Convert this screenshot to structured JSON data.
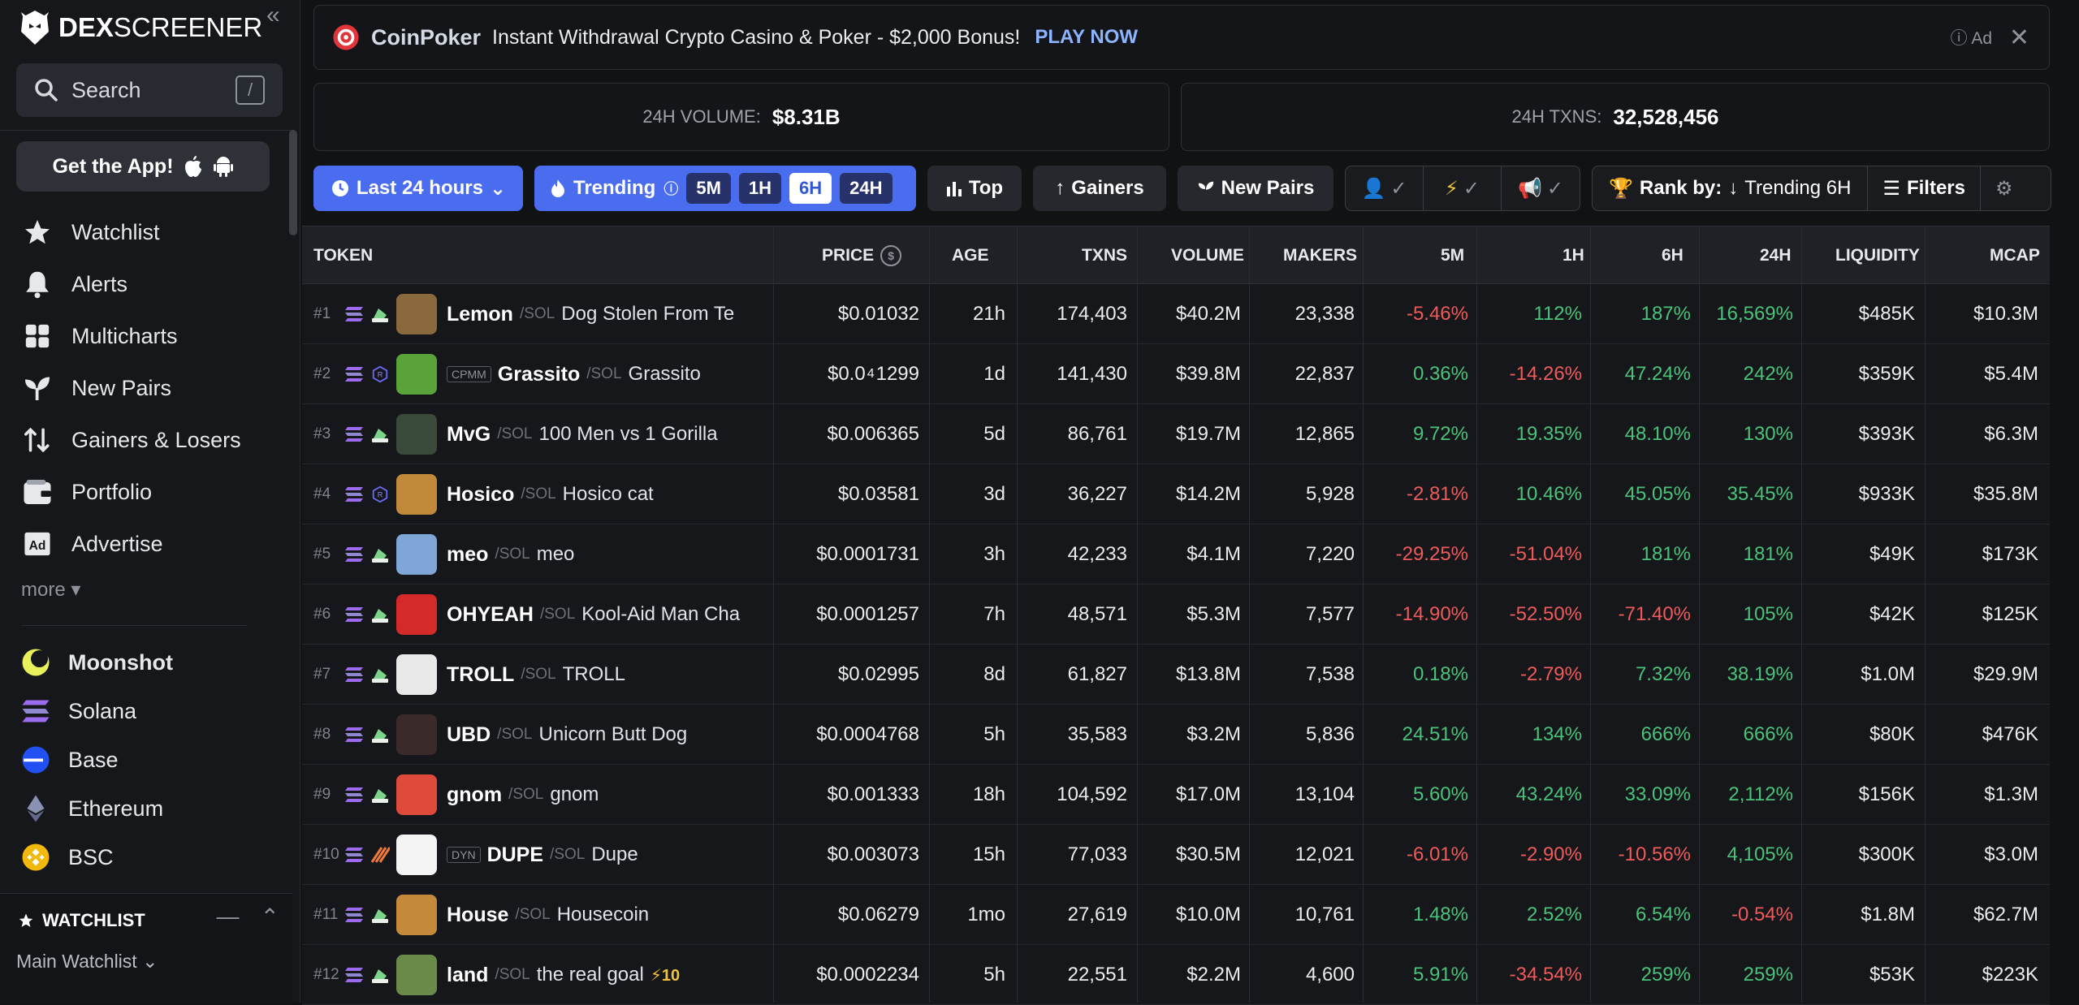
{
  "sidebar": {
    "logo_text_bold": "DEX",
    "logo_text": "SCREENER",
    "search_label": "Search",
    "search_shortcut": "/",
    "get_app": "Get the App!",
    "nav": [
      {
        "label": "Watchlist",
        "icon": "star-icon"
      },
      {
        "label": "Alerts",
        "icon": "bell-icon"
      },
      {
        "label": "Multicharts",
        "icon": "grid-icon"
      },
      {
        "label": "New Pairs",
        "icon": "sprout-icon"
      },
      {
        "label": "Gainers & Losers",
        "icon": "up-down-arrows-icon"
      },
      {
        "label": "Portfolio",
        "icon": "wallet-icon"
      },
      {
        "label": "Advertise",
        "icon": "ad-icon"
      }
    ],
    "more": "more",
    "chains": [
      {
        "label": "Moonshot",
        "color": "#e8f05a"
      },
      {
        "label": "Solana",
        "color": "#9b6cf0"
      },
      {
        "label": "Base",
        "color": "#2151f5"
      },
      {
        "label": "Ethereum",
        "color": "#8a92b2"
      },
      {
        "label": "BSC",
        "color": "#f0b90b"
      }
    ],
    "watchlist_title": "WATCHLIST",
    "watchlist_selected": "Main Watchlist"
  },
  "banner": {
    "brand": "CoinPoker",
    "text": "Instant Withdrawal Crypto Casino & Poker - $2,000 Bonus!",
    "cta": "PLAY NOW",
    "ad": "Ad"
  },
  "stats": {
    "volume_label": "24H VOLUME:",
    "volume_value": "$8.31B",
    "txns_label": "24H TXNS:",
    "txns_value": "32,528,456"
  },
  "toolbar": {
    "timeframe": "Last 24 hours",
    "trending": "Trending",
    "trending_options": [
      "5M",
      "1H",
      "6H",
      "24H"
    ],
    "trending_selected": "6H",
    "top": "Top",
    "gainers": "Gainers",
    "new_pairs": "New Pairs",
    "rank_by_label": "Rank by:",
    "rank_by_value": "Trending 6H",
    "filters": "Filters"
  },
  "table": {
    "headers": [
      "TOKEN",
      "PRICE",
      "AGE",
      "TXNS",
      "VOLUME",
      "MAKERS",
      "5M",
      "1H",
      "6H",
      "24H",
      "LIQUIDITY",
      "MCAP"
    ],
    "rows": [
      {
        "rank": "#1",
        "badge": "",
        "symbol": "Lemon",
        "quote": "SOL",
        "name": "Dog Stolen From Te",
        "price": "$0.01032",
        "age": "21h",
        "txns": "174,403",
        "volume": "$40.2M",
        "makers": "23,338",
        "m5": "-5.46%",
        "h1": "112%",
        "h6": "187%",
        "h24": "16,569%",
        "liquidity": "$485K",
        "mcap": "$10.3M",
        "avatar": "#8a6a3c"
      },
      {
        "rank": "#2",
        "badge": "CPMM",
        "symbol": "Grassito",
        "quote": "SOL",
        "name": "Grassito",
        "price_pre": "$0.0",
        "price_sub": "4",
        "price_post": "1299",
        "age": "1d",
        "txns": "141,430",
        "volume": "$39.8M",
        "makers": "22,837",
        "m5": "0.36%",
        "h1": "-14.26%",
        "h6": "47.24%",
        "h24": "242%",
        "liquidity": "$359K",
        "mcap": "$5.4M",
        "avatar": "#5aa23a"
      },
      {
        "rank": "#3",
        "badge": "",
        "symbol": "MvG",
        "quote": "SOL",
        "name": "100 Men vs 1 Gorilla",
        "price": "$0.006365",
        "age": "5d",
        "txns": "86,761",
        "volume": "$19.7M",
        "makers": "12,865",
        "m5": "9.72%",
        "h1": "19.35%",
        "h6": "48.10%",
        "h24": "130%",
        "liquidity": "$393K",
        "mcap": "$6.3M",
        "avatar": "#3a4a3a"
      },
      {
        "rank": "#4",
        "badge": "",
        "symbol": "Hosico",
        "quote": "SOL",
        "name": "Hosico cat",
        "price": "$0.03581",
        "age": "3d",
        "txns": "36,227",
        "volume": "$14.2M",
        "makers": "5,928",
        "m5": "-2.81%",
        "h1": "10.46%",
        "h6": "45.05%",
        "h24": "35.45%",
        "liquidity": "$933K",
        "mcap": "$35.8M",
        "avatar": "#c08a3a"
      },
      {
        "rank": "#5",
        "badge": "",
        "symbol": "meo",
        "quote": "SOL",
        "name": "meo",
        "price": "$0.0001731",
        "age": "3h",
        "txns": "42,233",
        "volume": "$4.1M",
        "makers": "7,220",
        "m5": "-29.25%",
        "h1": "-51.04%",
        "h6": "181%",
        "h24": "181%",
        "liquidity": "$49K",
        "mcap": "$173K",
        "avatar": "#7fa6d6"
      },
      {
        "rank": "#6",
        "badge": "",
        "symbol": "OHYEAH",
        "quote": "SOL",
        "name": "Kool-Aid Man Cha",
        "price": "$0.0001257",
        "age": "7h",
        "txns": "48,571",
        "volume": "$5.3M",
        "makers": "7,577",
        "m5": "-14.90%",
        "h1": "-52.50%",
        "h6": "-71.40%",
        "h24": "105%",
        "liquidity": "$42K",
        "mcap": "$125K",
        "avatar": "#d42a2a"
      },
      {
        "rank": "#7",
        "badge": "",
        "symbol": "TROLL",
        "quote": "SOL",
        "name": "TROLL",
        "price": "$0.02995",
        "age": "8d",
        "txns": "61,827",
        "volume": "$13.8M",
        "makers": "7,538",
        "m5": "0.18%",
        "h1": "-2.79%",
        "h6": "7.32%",
        "h24": "38.19%",
        "liquidity": "$1.0M",
        "mcap": "$29.9M",
        "avatar": "#e8e8e8"
      },
      {
        "rank": "#8",
        "badge": "",
        "symbol": "UBD",
        "quote": "SOL",
        "name": "Unicorn Butt Dog",
        "price": "$0.0004768",
        "age": "5h",
        "txns": "35,583",
        "volume": "$3.2M",
        "makers": "5,836",
        "m5": "24.51%",
        "h1": "134%",
        "h6": "666%",
        "h24": "666%",
        "liquidity": "$80K",
        "mcap": "$476K",
        "avatar": "#3a2a2a"
      },
      {
        "rank": "#9",
        "badge": "",
        "symbol": "gnom",
        "quote": "SOL",
        "name": "gnom",
        "price": "$0.001333",
        "age": "18h",
        "txns": "104,592",
        "volume": "$17.0M",
        "makers": "13,104",
        "m5": "5.60%",
        "h1": "43.24%",
        "h6": "33.09%",
        "h24": "2,112%",
        "liquidity": "$156K",
        "mcap": "$1.3M",
        "avatar": "#e04a3a"
      },
      {
        "rank": "#10",
        "badge": "DYN",
        "symbol": "DUPE",
        "quote": "SOL",
        "name": "Dupe",
        "price": "$0.003073",
        "age": "15h",
        "txns": "77,033",
        "volume": "$30.5M",
        "makers": "12,021",
        "m5": "-6.01%",
        "h1": "-2.90%",
        "h6": "-10.56%",
        "h24": "4,105%",
        "liquidity": "$300K",
        "mcap": "$3.0M",
        "avatar": "#f4f4f4"
      },
      {
        "rank": "#11",
        "badge": "",
        "symbol": "House",
        "quote": "SOL",
        "name": "Housecoin",
        "price": "$0.06279",
        "age": "1mo",
        "txns": "27,619",
        "volume": "$10.0M",
        "makers": "10,761",
        "m5": "1.48%",
        "h1": "2.52%",
        "h6": "6.54%",
        "h24": "-0.54%",
        "liquidity": "$1.8M",
        "mcap": "$62.7M",
        "avatar": "#c48a3a"
      },
      {
        "rank": "#12",
        "badge": "",
        "symbol": "land",
        "quote": "SOL",
        "name": "the real goal",
        "boost": "⚡10",
        "price": "$0.0002234",
        "age": "5h",
        "txns": "22,551",
        "volume": "$2.2M",
        "makers": "4,600",
        "m5": "5.91%",
        "h1": "-34.54%",
        "h6": "259%",
        "h24": "259%",
        "liquidity": "$53K",
        "mcap": "$223K",
        "avatar": "#6a8a4a"
      }
    ]
  }
}
